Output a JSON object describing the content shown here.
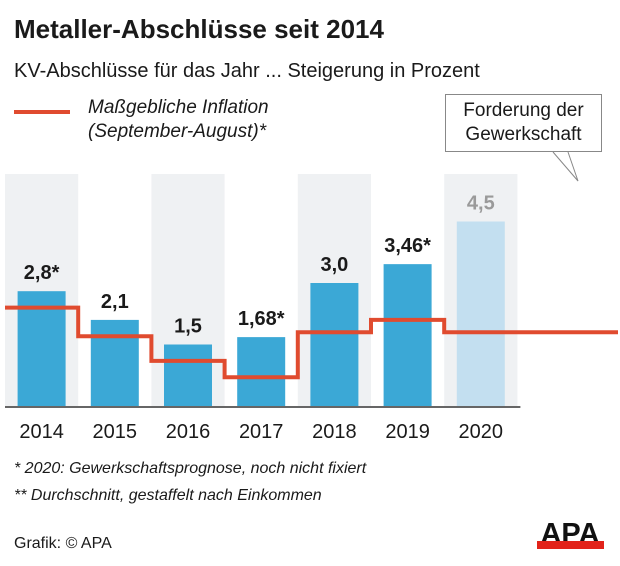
{
  "chart_data": {
    "type": "bar",
    "title": "Metaller-Abschlüsse seit 2014",
    "subtitle": "KV-Abschlüsse für das Jahr ... Steigerung in Prozent",
    "categories": [
      "2014",
      "2015",
      "2016",
      "2017",
      "2018",
      "2019",
      "2020"
    ],
    "series": [
      {
        "name": "KV-Abschluss",
        "values": [
          2.8,
          2.1,
          1.5,
          1.68,
          3.0,
          3.46,
          4.5
        ],
        "labels": [
          "2,8*",
          "2,1",
          "1,5",
          "1,68*",
          "3,0",
          "3,46*",
          "4,5"
        ],
        "color": "#3ba8d6",
        "highlight_color": "#c3dff0"
      },
      {
        "name": "Maßgebliche Inflation (September-August)*",
        "type": "step-line",
        "values": [
          2.4,
          1.7,
          1.1,
          0.7,
          1.8,
          2.1,
          1.8
        ],
        "color": "#e04b2f"
      }
    ],
    "ylim": [
      0,
      5
    ],
    "legend": {
      "line1": "Maßgebliche Inflation",
      "line2": "(September-August)*"
    },
    "callout": {
      "line1": "Forderung der",
      "line2": "Gewerkschaft"
    }
  },
  "footnotes": [
    "*   2020: Gewerkschaftsprognose, noch nicht fixiert",
    "** Durchschnitt, gestaffelt nach Einkommen"
  ],
  "credit": "Grafik: © APA",
  "logo": "APA"
}
